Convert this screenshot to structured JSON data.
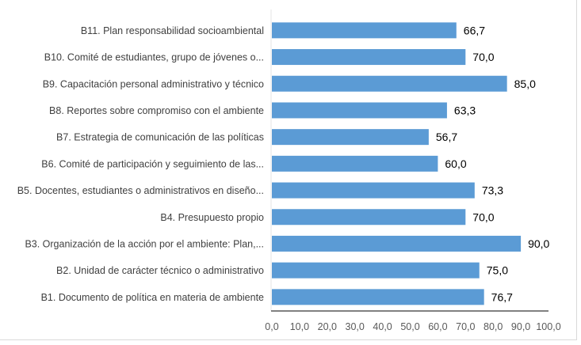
{
  "chart_data": {
    "type": "bar",
    "orientation": "horizontal",
    "categories": [
      "B11. Plan responsabilidad socioambiental",
      "B10. Comité de estudiantes, grupo de jóvenes o...",
      "B9. Capacitación personal administrativo y técnico",
      "B8. Reportes sobre compromiso con el ambiente",
      "B7. Estrategia de comunicación de las políticas",
      "B6. Comité de participación y seguimiento de las...",
      "B5. Docentes, estudiantes o administrativos en diseño...",
      "B4. Presupuesto propio",
      "B3. Organización de la acción por el ambiente: Plan,...",
      "B2. Unidad de carácter técnico o administrativo",
      "B1. Documento de política en materia de ambiente"
    ],
    "values": [
      66.7,
      70.0,
      85.0,
      63.3,
      56.7,
      60.0,
      73.3,
      70.0,
      90.0,
      75.0,
      76.7
    ],
    "data_labels": [
      "66,7",
      "70,0",
      "85,0",
      "63,3",
      "56,7",
      "60,0",
      "73,3",
      "70,0",
      "90,0",
      "75,0",
      "76,7"
    ],
    "x_ticks": [
      "0,0",
      "10,0",
      "20,0",
      "30,0",
      "40,0",
      "50,0",
      "60,0",
      "70,0",
      "80,0",
      "90,0",
      "100,0"
    ],
    "xlim": [
      0,
      100
    ],
    "grid": false,
    "bar_color": "#5b9bd5",
    "title": "",
    "xlabel": "",
    "ylabel": ""
  }
}
